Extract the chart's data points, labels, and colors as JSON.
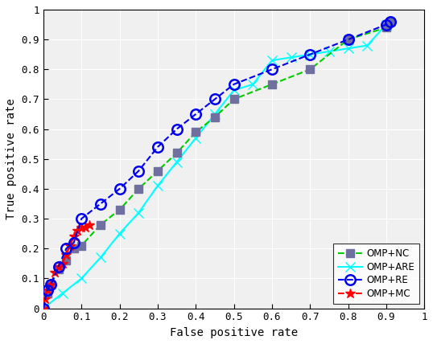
{
  "title": "",
  "xlabel": "False positive rate",
  "ylabel": "True positive rate",
  "xlim": [
    0,
    1
  ],
  "ylim": [
    0,
    1
  ],
  "xticks": [
    0,
    0.1,
    0.2,
    0.3,
    0.4,
    0.5,
    0.6,
    0.7,
    0.8,
    0.9,
    1
  ],
  "yticks": [
    0,
    0.1,
    0.2,
    0.3,
    0.4,
    0.5,
    0.6,
    0.7,
    0.8,
    0.9,
    1
  ],
  "OMP_NC": {
    "x": [
      0.0,
      0.01,
      0.02,
      0.04,
      0.06,
      0.08,
      0.1,
      0.15,
      0.2,
      0.25,
      0.3,
      0.35,
      0.4,
      0.45,
      0.5,
      0.6,
      0.7,
      0.8,
      0.9,
      0.91
    ],
    "y": [
      0.0,
      0.05,
      0.08,
      0.13,
      0.16,
      0.2,
      0.21,
      0.28,
      0.33,
      0.4,
      0.46,
      0.52,
      0.59,
      0.64,
      0.7,
      0.75,
      0.8,
      0.9,
      0.94,
      0.96
    ],
    "color": "#00cc00",
    "linestyle": "--",
    "linewidth": 1.5,
    "marker": "s",
    "marker_facecolor": "#7070a0",
    "marker_edgecolor": "#7070a0",
    "marker_size": 7
  },
  "OMP_ARE": {
    "x": [
      0.0,
      0.05,
      0.1,
      0.15,
      0.2,
      0.25,
      0.3,
      0.35,
      0.4,
      0.45,
      0.5,
      0.55,
      0.6,
      0.65,
      0.7,
      0.75,
      0.8,
      0.85,
      0.9
    ],
    "y": [
      0.0,
      0.05,
      0.1,
      0.17,
      0.25,
      0.32,
      0.41,
      0.49,
      0.57,
      0.65,
      0.73,
      0.75,
      0.83,
      0.84,
      0.85,
      0.86,
      0.87,
      0.88,
      0.95
    ],
    "color": "#00ffff",
    "linestyle": "-",
    "linewidth": 1.5,
    "marker": "x",
    "marker_color": "#00ffff",
    "marker_size": 8
  },
  "OMP_RE": {
    "x": [
      0.0,
      0.01,
      0.02,
      0.04,
      0.06,
      0.08,
      0.1,
      0.15,
      0.2,
      0.25,
      0.3,
      0.35,
      0.4,
      0.45,
      0.5,
      0.6,
      0.7,
      0.8,
      0.9,
      0.91
    ],
    "y": [
      0.0,
      0.06,
      0.08,
      0.14,
      0.2,
      0.22,
      0.3,
      0.35,
      0.4,
      0.46,
      0.54,
      0.6,
      0.65,
      0.7,
      0.75,
      0.8,
      0.85,
      0.9,
      0.95,
      0.96
    ],
    "color": "#0000ee",
    "linestyle": "--",
    "linewidth": 1.5,
    "marker": "o",
    "marker_facecolor": "none",
    "marker_edgecolor": "#0000ee",
    "marker_edgewidth": 1.8,
    "marker_size": 9
  },
  "OMP_MC": {
    "x": [
      0.0,
      0.005,
      0.01,
      0.02,
      0.03,
      0.04,
      0.05,
      0.06,
      0.07,
      0.08,
      0.09,
      0.1,
      0.11,
      0.12
    ],
    "y": [
      0.0,
      0.03,
      0.06,
      0.08,
      0.12,
      0.14,
      0.15,
      0.18,
      0.21,
      0.24,
      0.26,
      0.27,
      0.27,
      0.28
    ],
    "color": "#ff0000",
    "linestyle": "--",
    "linewidth": 1.5,
    "marker": "*",
    "marker_color": "#ff0000",
    "marker_size": 9
  },
  "legend_labels": [
    "OMP+NC",
    "OMP+ARE",
    "OMP+RE",
    "OMP+MC"
  ],
  "bg_color": "#f0f0f0"
}
